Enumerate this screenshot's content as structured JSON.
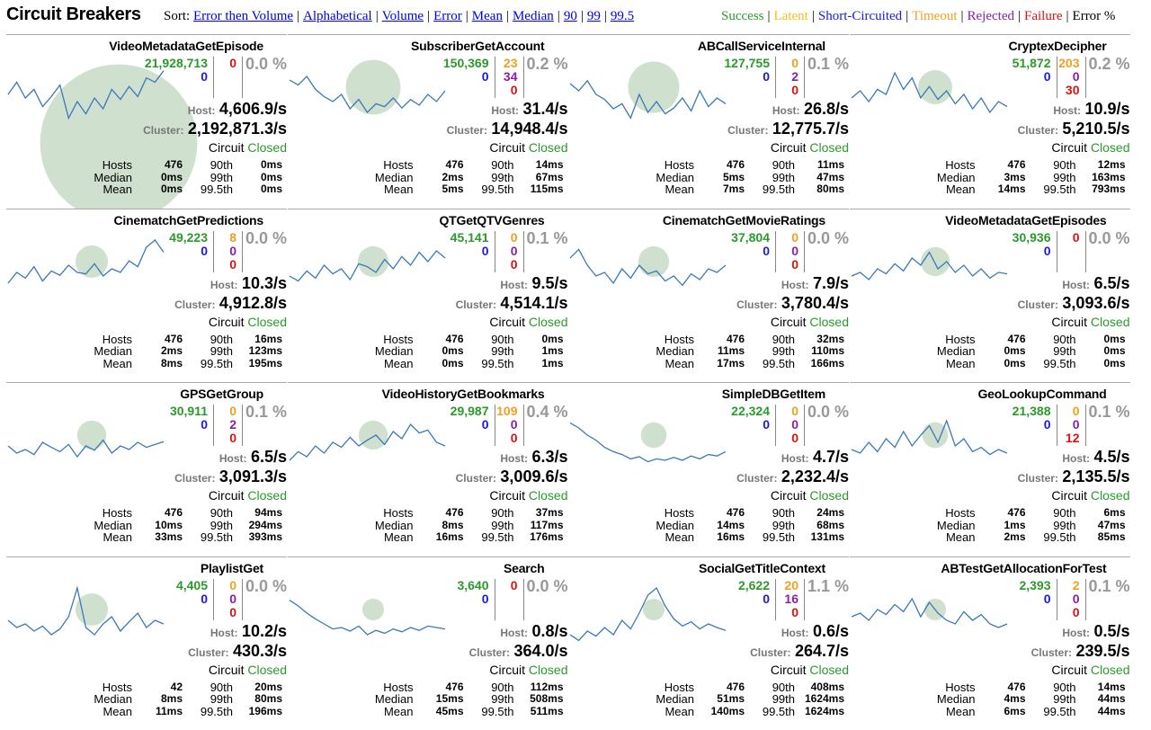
{
  "header": {
    "title": "Circuit Breakers",
    "sort_label": "Sort:",
    "sort_links": [
      "Error then Volume",
      "Alphabetical",
      "Volume",
      "Error",
      "Mean",
      "Median",
      "90",
      "99",
      "99.5"
    ],
    "legend": [
      {
        "label": "Success",
        "color": "#2a9a2a"
      },
      {
        "label": "Latent",
        "color": "#f0c020"
      },
      {
        "label": "Short-Circuited",
        "color": "#1a1ae0"
      },
      {
        "label": "Timeout",
        "color": "#f0a020"
      },
      {
        "label": "Rejected",
        "color": "#8a1fa8"
      },
      {
        "label": "Failure",
        "color": "#dd1111"
      },
      {
        "label": "Error %",
        "color": "#000000"
      }
    ]
  },
  "labels": {
    "host": "Host:",
    "cluster": "Cluster:",
    "circuit": "Circuit",
    "hosts": "Hosts",
    "median": "Median",
    "mean": "Mean",
    "p90": "90th",
    "p99": "99th",
    "p995": "99.5th"
  },
  "circuits": [
    {
      "name": "VideoMetadataGetEpisode",
      "success": "21,928,713",
      "short": "0",
      "timeout": null,
      "rejected": null,
      "failure": "0",
      "err": "0.0 %",
      "host": "4,606.9/s",
      "cluster": "2,192,871.3/s",
      "state": "Closed",
      "hosts": "476",
      "median": "0ms",
      "mean": "0ms",
      "p90": "0ms",
      "p99": "0ms",
      "p995": "0ms",
      "circle": 0.92,
      "spark": [
        0.55,
        0.72,
        0.5,
        0.62,
        0.38,
        0.52,
        0.68,
        0.22,
        0.45,
        0.28,
        0.5,
        0.35,
        0.62,
        0.48,
        0.66,
        0.52,
        0.78,
        0.72,
        0.88
      ]
    },
    {
      "name": "SubscriberGetAccount",
      "success": "150,369",
      "short": "0",
      "timeout": "23",
      "rejected": "34",
      "failure": "0",
      "err": "0.2 %",
      "host": "31.4/s",
      "cluster": "14,948.4/s",
      "state": "Closed",
      "hosts": "476",
      "median": "2ms",
      "mean": "5ms",
      "p90": "14ms",
      "p99": "67ms",
      "p995": "115ms",
      "circle": 0.32,
      "spark": [
        0.75,
        0.68,
        0.8,
        0.62,
        0.52,
        0.45,
        0.55,
        0.35,
        0.48,
        0.3,
        0.42,
        0.38,
        0.5,
        0.36,
        0.48,
        0.4,
        0.55,
        0.45,
        0.6
      ]
    },
    {
      "name": "ABCallServiceInternal",
      "success": "127,755",
      "short": "0",
      "timeout": "0",
      "rejected": "2",
      "failure": "0",
      "err": "0.1 %",
      "host": "26.8/s",
      "cluster": "12,775.7/s",
      "state": "Closed",
      "hosts": "476",
      "median": "5ms",
      "mean": "7ms",
      "p90": "11ms",
      "p99": "47ms",
      "p995": "80ms",
      "circle": 0.3,
      "spark": [
        0.7,
        0.6,
        0.74,
        0.55,
        0.48,
        0.35,
        0.42,
        0.22,
        0.55,
        0.3,
        0.45,
        0.28,
        0.36,
        0.5,
        0.32,
        0.6,
        0.38,
        0.5,
        0.42
      ]
    },
    {
      "name": "CryptexDecipher",
      "success": "51,872",
      "short": "0",
      "timeout": "203",
      "rejected": "0",
      "failure": "30",
      "err": "0.2 %",
      "host": "10.9/s",
      "cluster": "5,210.5/s",
      "state": "Closed",
      "hosts": "476",
      "median": "3ms",
      "mean": "14ms",
      "p90": "12ms",
      "p99": "163ms",
      "p995": "793ms",
      "circle": 0.2,
      "spark": [
        0.5,
        0.6,
        0.45,
        0.62,
        0.55,
        0.85,
        0.62,
        0.78,
        0.5,
        0.66,
        0.48,
        0.6,
        0.42,
        0.55,
        0.35,
        0.5,
        0.3,
        0.45,
        0.38
      ]
    },
    {
      "name": "CinematchGetPredictions",
      "success": "49,223",
      "short": "0",
      "timeout": "8",
      "rejected": "0",
      "failure": "0",
      "err": "0.0 %",
      "host": "10.3/s",
      "cluster": "4,912.8/s",
      "state": "Closed",
      "hosts": "476",
      "median": "2ms",
      "mean": "8ms",
      "p90": "16ms",
      "p99": "123ms",
      "p995": "195ms",
      "circle": 0.19,
      "spark": [
        0.35,
        0.5,
        0.42,
        0.58,
        0.38,
        0.52,
        0.46,
        0.6,
        0.5,
        0.48,
        0.62,
        0.45,
        0.55,
        0.5,
        0.66,
        0.58,
        0.85,
        0.95,
        0.78
      ]
    },
    {
      "name": "QTGetQTVGenres",
      "success": "45,141",
      "short": "0",
      "timeout": "0",
      "rejected": "0",
      "failure": "0",
      "err": "0.1 %",
      "host": "9.5/s",
      "cluster": "4,514.1/s",
      "state": "Closed",
      "hosts": "476",
      "median": "0ms",
      "mean": "0ms",
      "p90": "0ms",
      "p99": "1ms",
      "p995": "1ms",
      "circle": 0.18,
      "spark": [
        0.45,
        0.38,
        0.52,
        0.42,
        0.6,
        0.48,
        0.55,
        0.4,
        0.62,
        0.58,
        0.5,
        0.68,
        0.55,
        0.72,
        0.6,
        0.78,
        0.65,
        0.8,
        0.7
      ]
    },
    {
      "name": "CinematchGetMovieRatings",
      "success": "37,804",
      "short": "0",
      "timeout": "0",
      "rejected": "0",
      "failure": "0",
      "err": "0.0 %",
      "host": "7.9/s",
      "cluster": "3,780.4/s",
      "state": "Closed",
      "hosts": "476",
      "median": "11ms",
      "mean": "17ms",
      "p90": "32ms",
      "p99": "110ms",
      "p995": "166ms",
      "circle": 0.18,
      "spark": [
        0.7,
        0.82,
        0.6,
        0.45,
        0.5,
        0.35,
        0.55,
        0.42,
        0.6,
        0.48,
        0.52,
        0.38,
        0.45,
        0.32,
        0.48,
        0.4,
        0.55,
        0.5,
        0.6
      ]
    },
    {
      "name": "VideoMetadataGetEpisodes",
      "success": "30,936",
      "short": "0",
      "timeout": null,
      "rejected": null,
      "failure": "0",
      "err": "0.0 %",
      "host": "6.5/s",
      "cluster": "3,093.6/s",
      "state": "Closed",
      "hosts": "476",
      "median": "0ms",
      "mean": "0ms",
      "p90": "0ms",
      "p99": "0ms",
      "p995": "0ms",
      "circle": 0.17,
      "spark": [
        0.45,
        0.5,
        0.4,
        0.55,
        0.48,
        0.62,
        0.52,
        0.7,
        0.6,
        0.78,
        0.55,
        0.65,
        0.5,
        0.6,
        0.45,
        0.55,
        0.42,
        0.5,
        0.48
      ]
    },
    {
      "name": "GPSGetGroup",
      "success": "30,911",
      "short": "0",
      "timeout": "0",
      "rejected": "2",
      "failure": "0",
      "err": "0.1 %",
      "host": "6.5/s",
      "cluster": "3,091.3/s",
      "state": "Closed",
      "hosts": "476",
      "median": "10ms",
      "mean": "33ms",
      "p90": "94ms",
      "p99": "294ms",
      "p995": "393ms",
      "circle": 0.17,
      "spark": [
        0.5,
        0.4,
        0.45,
        0.38,
        0.55,
        0.48,
        0.42,
        0.52,
        0.35,
        0.5,
        0.44,
        0.58,
        0.4,
        0.5,
        0.45,
        0.55,
        0.48,
        0.52,
        0.56
      ]
    },
    {
      "name": "VideoHistoryGetBookmarks",
      "success": "29,987",
      "short": "0",
      "timeout": "109",
      "rejected": "0",
      "failure": "0",
      "err": "0.4 %",
      "host": "6.3/s",
      "cluster": "3,009.6/s",
      "state": "Closed",
      "hosts": "476",
      "median": "8ms",
      "mean": "16ms",
      "p90": "37ms",
      "p99": "117ms",
      "p995": "176ms",
      "circle": 0.17,
      "spark": [
        0.3,
        0.42,
        0.35,
        0.5,
        0.4,
        0.55,
        0.48,
        0.62,
        0.5,
        0.58,
        0.65,
        0.52,
        0.7,
        0.6,
        0.8,
        0.68,
        0.72,
        0.55,
        0.5
      ]
    },
    {
      "name": "SimpleDBGetItem",
      "success": "22,324",
      "short": "0",
      "timeout": "0",
      "rejected": "0",
      "failure": "0",
      "err": "0.0 %",
      "host": "4.7/s",
      "cluster": "2,232.4/s",
      "state": "Closed",
      "hosts": "476",
      "median": "14ms",
      "mean": "16ms",
      "p90": "24ms",
      "p99": "68ms",
      "p995": "131ms",
      "circle": 0.15,
      "spark": [
        0.82,
        0.75,
        0.65,
        0.58,
        0.48,
        0.42,
        0.38,
        0.32,
        0.35,
        0.28,
        0.32,
        0.3,
        0.34,
        0.3,
        0.36,
        0.32,
        0.38,
        0.36,
        0.42
      ]
    },
    {
      "name": "GeoLookupCommand",
      "success": "21,388",
      "short": "0",
      "timeout": "0",
      "rejected": "0",
      "failure": "12",
      "err": "0.1 %",
      "host": "4.5/s",
      "cluster": "2,135.5/s",
      "state": "Closed",
      "hosts": "476",
      "median": "1ms",
      "mean": "2ms",
      "p90": "6ms",
      "p99": "47ms",
      "p995": "85ms",
      "circle": 0.15,
      "spark": [
        0.45,
        0.4,
        0.55,
        0.42,
        0.6,
        0.48,
        0.7,
        0.5,
        0.65,
        0.78,
        0.55,
        0.85,
        0.5,
        0.6,
        0.42,
        0.48,
        0.38,
        0.45,
        0.4
      ]
    },
    {
      "name": "PlaylistGet",
      "success": "4,405",
      "short": "0",
      "timeout": "0",
      "rejected": "0",
      "failure": "0",
      "err": "0.0 %",
      "host": "10.2/s",
      "cluster": "430.3/s",
      "state": "Closed",
      "hosts": "42",
      "median": "8ms",
      "mean": "11ms",
      "p90": "20ms",
      "p99": "80ms",
      "p995": "196ms",
      "circle": 0.19,
      "spark": [
        0.5,
        0.4,
        0.45,
        0.35,
        0.42,
        0.3,
        0.38,
        0.55,
        0.95,
        0.4,
        0.3,
        0.45,
        0.55,
        0.35,
        0.48,
        0.6,
        0.4,
        0.5,
        0.45
      ]
    },
    {
      "name": "Search",
      "success": "3,640",
      "short": "0",
      "timeout": null,
      "rejected": null,
      "failure": "0",
      "err": "0.0 %",
      "host": "0.8/s",
      "cluster": "364.0/s",
      "state": "Closed",
      "hosts": "476",
      "median": "15ms",
      "mean": "45ms",
      "p90": "112ms",
      "p99": "508ms",
      "p995": "511ms",
      "circle": 0.09,
      "spark": [
        0.78,
        0.7,
        0.6,
        0.52,
        0.45,
        0.38,
        0.4,
        0.35,
        0.42,
        0.3,
        0.36,
        0.32,
        0.38,
        0.34,
        0.4,
        0.36,
        0.42,
        0.4,
        0.38
      ]
    },
    {
      "name": "SocialGetTitleContext",
      "success": "2,622",
      "short": "0",
      "timeout": "20",
      "rejected": "16",
      "failure": "0",
      "err": "1.1 %",
      "host": "0.6/s",
      "cluster": "264.7/s",
      "state": "Closed",
      "hosts": "476",
      "median": "51ms",
      "mean": "140ms",
      "p90": "408ms",
      "p99": "1624ms",
      "p995": "1624ms",
      "circle": 0.08,
      "spark": [
        0.3,
        0.22,
        0.35,
        0.28,
        0.4,
        0.3,
        0.5,
        0.38,
        0.6,
        0.85,
        0.95,
        0.7,
        0.52,
        0.42,
        0.48,
        0.38,
        0.45,
        0.4,
        0.36
      ]
    },
    {
      "name": "ABTestGetAllocationForTest",
      "success": "2,393",
      "short": "0",
      "timeout": "2",
      "rejected": "0",
      "failure": "0",
      "err": "0.1 %",
      "host": "0.5/s",
      "cluster": "239.5/s",
      "state": "Closed",
      "hosts": "476",
      "median": "4ms",
      "mean": "6ms",
      "p90": "14ms",
      "p99": "44ms",
      "p995": "44ms",
      "circle": 0.08,
      "spark": [
        0.55,
        0.6,
        0.5,
        0.65,
        0.58,
        0.72,
        0.62,
        0.8,
        0.55,
        0.75,
        0.6,
        0.5,
        0.45,
        0.62,
        0.5,
        0.58,
        0.45,
        0.4,
        0.45
      ]
    }
  ]
}
